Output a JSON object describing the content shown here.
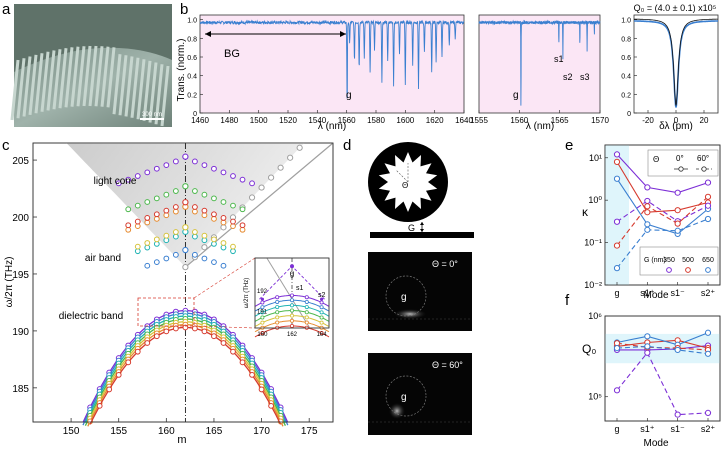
{
  "panel_labels": [
    "a",
    "b",
    "c",
    "d",
    "e",
    "f"
  ],
  "panel_a": {
    "scale_bar": "300 nm"
  },
  "panel_b": {
    "ylabel": "Trans. (norm.)",
    "plot1": {
      "xlabel": "λ (nm)",
      "xticks": [
        "1460",
        "1480",
        "1500",
        "1520",
        "1540",
        "1560",
        "1580",
        "1600",
        "1620",
        "1640"
      ],
      "yticks": [
        "0",
        "0.2",
        "0.4",
        "0.6",
        "0.8",
        "1.0"
      ],
      "annot_bg": "BG",
      "annot_g": "g"
    },
    "plot2": {
      "xlabel": "λ (nm)",
      "xticks": [
        "1555",
        "1560",
        "1565",
        "1570"
      ],
      "annot_g": "g",
      "annot_s1": "s1",
      "annot_s2": "s2",
      "annot_s3": "s3"
    },
    "plot3": {
      "title": "Q₀ = (4.0 ± 0.1) x10⁵",
      "xlabel": "δλ (pm)",
      "xticks": [
        "-20",
        "0",
        "20"
      ],
      "yticks": [
        "0",
        "0.2",
        "0.4",
        "0.6",
        "0.8",
        "1.0"
      ]
    },
    "colors": {
      "data": "#3a7fd0",
      "bg": "#fbe6f5"
    }
  },
  "panel_c": {
    "xlabel": "m",
    "ylabel": "ω/2π (THz)",
    "xticks": [
      "150",
      "155",
      "160",
      "165",
      "170",
      "175"
    ],
    "yticks": [
      "185",
      "190",
      "195",
      "200",
      "205"
    ],
    "labels": {
      "light_cone": "light cone",
      "air_band": "air band",
      "dielectric_band": "dielectric band"
    },
    "inset": {
      "ylabel": "ω/2π (THz)",
      "xticks": [
        "160",
        "162",
        "164"
      ],
      "yticks": [
        "191",
        "192"
      ],
      "label_g": "g",
      "label_s1": "s1",
      "label_s2": "s2"
    }
  },
  "panel_d": {
    "label_theta": "Θ",
    "label_g": "G",
    "image1_text": "Θ = 0°",
    "image2_text": "Θ = 60°",
    "image_g": "g"
  },
  "panel_e": {
    "ylabel": "κ",
    "xlabel": "Mode",
    "yticks": [
      "10⁻²",
      "10⁻¹",
      "10⁰",
      "10¹"
    ],
    "legend_theta": {
      "symbol": "Θ",
      "items": [
        "0°",
        "60°"
      ]
    },
    "legend_G": {
      "title": "G (nm)",
      "items": [
        "350",
        "500",
        "650"
      ]
    }
  },
  "panel_f": {
    "ylabel": "Q₀",
    "xlabel": "Mode",
    "yticks": [
      "10⁵",
      "10⁶"
    ]
  },
  "chart_data": [
    {
      "type": "line",
      "panel": "b-left",
      "xlabel": "λ (nm)",
      "ylabel": "Trans. (norm.)",
      "xlim": [
        1460,
        1640
      ],
      "ylim": [
        0,
        1.05
      ],
      "baseline": 0.97,
      "dips": [
        [
          1560.3,
          0.08
        ],
        [
          1562,
          0.74
        ],
        [
          1565.3,
          0.55
        ],
        [
          1568.5,
          0.47
        ],
        [
          1572,
          0.59
        ],
        [
          1576,
          0.42
        ],
        [
          1579,
          0.68
        ],
        [
          1584,
          0.33
        ],
        [
          1588,
          0.56
        ],
        [
          1592,
          0.28
        ],
        [
          1596,
          0.62
        ],
        [
          1600,
          0.3
        ],
        [
          1605,
          0.52
        ],
        [
          1609,
          0.25
        ],
        [
          1613,
          0.66
        ],
        [
          1618,
          0.43
        ],
        [
          1621,
          0.55
        ],
        [
          1625,
          0.6
        ],
        [
          1630,
          0.72
        ],
        [
          1634,
          0.8
        ]
      ],
      "annotations": [
        "BG",
        "g"
      ]
    },
    {
      "type": "line",
      "panel": "b-middle",
      "xlabel": "λ (nm)",
      "xlim": [
        1555,
        1570
      ],
      "ylim": [
        0,
        1.05
      ],
      "baseline": 0.97,
      "dips": [
        [
          1560.2,
          0.08
        ],
        [
          1564.9,
          0.75
        ],
        [
          1565.4,
          0.58
        ],
        [
          1567.5,
          0.74
        ],
        [
          1568.4,
          0.66
        ],
        [
          1569.3,
          0.85
        ]
      ],
      "annotations": [
        "g",
        "s1",
        "s2",
        "s3"
      ]
    },
    {
      "type": "line",
      "panel": "b-right",
      "title": "Q₀ = (4.0 ± 0.1) x10⁵",
      "xlabel": "δλ (pm)",
      "xlim": [
        -30,
        30
      ],
      "ylim": [
        0,
        1.05
      ],
      "series": [
        {
          "kind": "measured",
          "dip_depth": 0.93,
          "half_width_pm": 2.0
        },
        {
          "kind": "fit",
          "dip_depth": 0.93,
          "half_width_pm": 2.0
        }
      ]
    },
    {
      "type": "scatter",
      "panel": "c",
      "xlabel": "m",
      "ylabel": "ω/2π (THz)",
      "xlim": [
        146,
        177.5
      ],
      "ylim": [
        182,
        206.5
      ],
      "light_line": [
        [
          162,
          195.6
        ],
        [
          177,
          208.7
        ]
      ],
      "series": [
        {
          "color": "#7c2ed6",
          "band_top": 191.78,
          "air_tip": 205.2
        },
        {
          "color": "#3a7fd0",
          "band_top": 191.55,
          "air_tip": 197.0
        },
        {
          "color": "#1fb3b3",
          "band_top": 191.3,
          "air_tip": 198.6
        },
        {
          "color": "#4db84d",
          "band_top": 191.05,
          "air_tip": 202.6
        },
        {
          "color": "#d6c23a",
          "band_top": 190.8,
          "air_tip": 199.0
        },
        {
          "color": "#e68a2e",
          "band_top": 190.55,
          "air_tip": 200.8
        },
        {
          "color": "#d63a2e",
          "band_top": 190.3,
          "air_tip": 201.2
        }
      ]
    },
    {
      "type": "line",
      "panel": "e",
      "xlabel": "Mode",
      "ylabel": "κ",
      "categories": [
        "g",
        "s1⁺",
        "s1⁻",
        "s2⁺"
      ],
      "ylog": true,
      "ylim": [
        0.01,
        20
      ],
      "series": [
        {
          "color": "#7c2ed6",
          "style": "solid",
          "values": [
            12,
            2.0,
            1.5,
            2.6
          ]
        },
        {
          "color": "#d63a2e",
          "style": "solid",
          "values": [
            8,
            0.52,
            0.58,
            0.88
          ]
        },
        {
          "color": "#3a7fd0",
          "style": "solid",
          "values": [
            3.2,
            0.27,
            0.16,
            0.62
          ]
        },
        {
          "color": "#7c2ed6",
          "style": "dashed",
          "values": [
            0.31,
            0.96,
            0.32,
            0.74
          ]
        },
        {
          "color": "#d63a2e",
          "style": "dashed",
          "values": [
            0.085,
            0.72,
            0.28,
            1.2
          ]
        },
        {
          "color": "#3a7fd0",
          "style": "dashed",
          "values": [
            0.025,
            0.2,
            0.19,
            0.36
          ]
        }
      ]
    },
    {
      "type": "line",
      "panel": "f",
      "xlabel": "Mode",
      "ylabel": "Q₀",
      "categories": [
        "g",
        "s1⁺",
        "s1⁻",
        "s2⁺"
      ],
      "ylog": true,
      "ylim": [
        50000,
        1000000
      ],
      "band": [
        260000,
        600000
      ],
      "series": [
        {
          "color": "#7c2ed6",
          "style": "solid",
          "values": [
            380000,
            380000,
            390000,
            430000
          ]
        },
        {
          "color": "#d63a2e",
          "style": "solid",
          "values": [
            420000,
            470000,
            500000,
            400000
          ]
        },
        {
          "color": "#3a7fd0",
          "style": "solid",
          "values": [
            470000,
            560000,
            440000,
            620000
          ]
        },
        {
          "color": "#7c2ed6",
          "style": "dashed",
          "values": [
            120000,
            350000,
            60000,
            63000
          ]
        },
        {
          "color": "#d63a2e",
          "style": "dashed",
          "values": [
            460000,
            410000,
            400000,
            380000
          ]
        },
        {
          "color": "#3a7fd0",
          "style": "dashed",
          "values": [
            400000,
            420000,
            380000,
            340000
          ]
        }
      ]
    }
  ]
}
